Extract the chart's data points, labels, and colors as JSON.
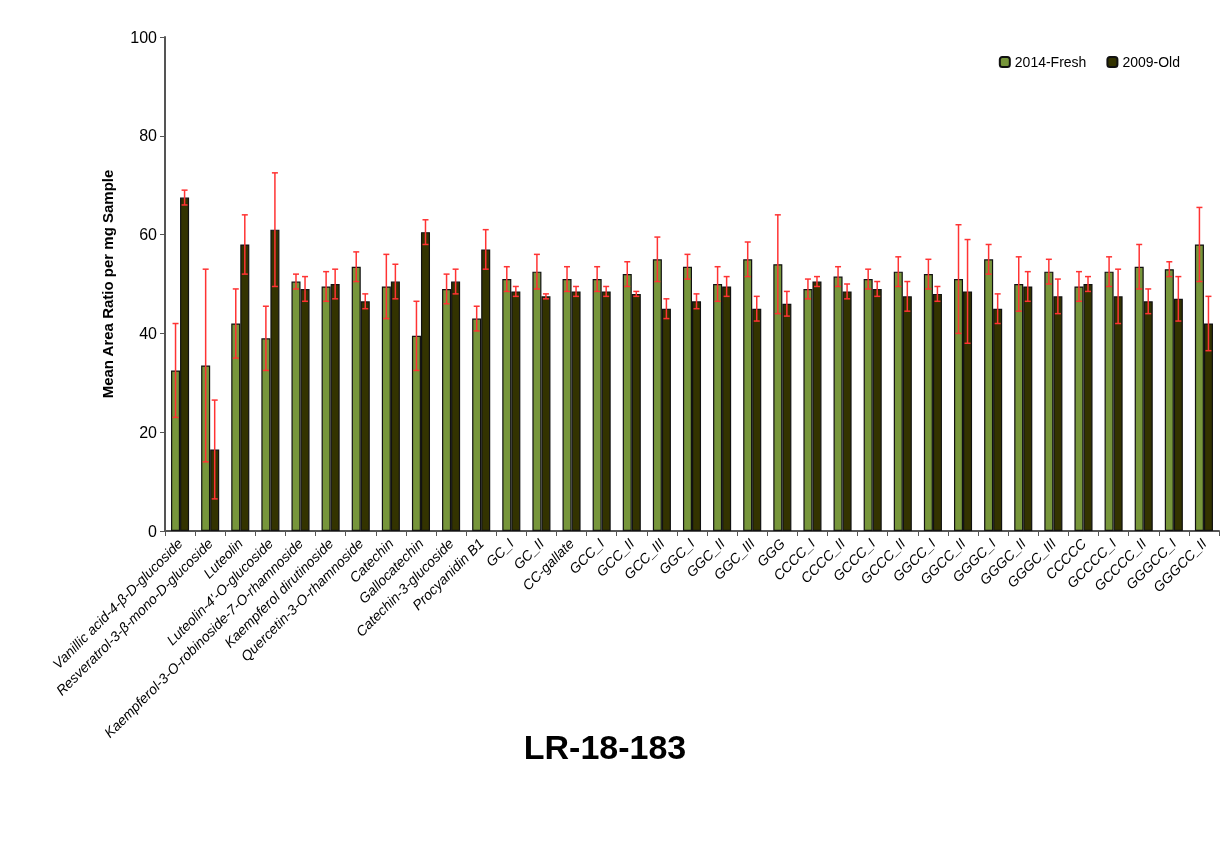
{
  "chart_data": {
    "type": "bar",
    "title": "LR-18-183",
    "ylabel": "Mean Area Ratio per mg Sample",
    "categories": [
      "Vanillic acid-4-β-D-glucoside",
      "Resveratrol-3-β-mono-D-glucoside",
      "Luteolin",
      "Luteolin-4'-O-glucoside",
      "Kaempferol-3-O-robinoside-7-O-rhamnoside",
      "Kaempferol dirutinoside",
      "Quercetin-3-O-rhamnoside",
      "Catechin",
      "Gallocatechin",
      "Catechin-3-glucoside",
      "Procyanidin B1",
      "GC_I",
      "GC_II",
      "CC-gallate",
      "GCC_I",
      "GCC_II",
      "GCC_III",
      "GGC_I",
      "GGC_II",
      "GGC_III",
      "GGG",
      "CCCC_I",
      "CCCC_II",
      "GCCC_I",
      "GCCC_II",
      "GGCC_I",
      "GGCC_II",
      "GGGC_I",
      "GGGC_II",
      "GGGC_III",
      "CCCCC",
      "GCCCC_I",
      "GCCCC_II",
      "GGGCC_I",
      "GGGCC_II"
    ],
    "series": [
      {
        "name": "2014-Fresh",
        "color": "#77963b",
        "values": [
          32.5,
          33.5,
          42,
          39,
          50.5,
          49.5,
          53.5,
          49.5,
          39.5,
          49,
          43,
          51,
          52.5,
          51,
          51,
          52,
          55,
          53.5,
          50,
          55,
          54,
          49,
          51.5,
          51,
          52.5,
          52,
          51,
          55,
          50,
          52.5,
          49.5,
          52.5,
          53.5,
          53,
          58
        ],
        "errors": [
          9.5,
          19.5,
          7,
          6.5,
          1.5,
          3,
          3,
          6.5,
          7,
          3,
          2.5,
          2.5,
          3.5,
          2.5,
          2.5,
          2.5,
          4.5,
          2.5,
          3.5,
          3.5,
          10,
          2,
          2,
          2,
          3,
          3,
          11,
          3,
          5.5,
          2.5,
          3,
          3,
          4.5,
          1.5,
          7.5
        ]
      },
      {
        "name": "2009-Old",
        "color": "#333300",
        "values": [
          67.5,
          16.5,
          58,
          61,
          49,
          50,
          46.5,
          50.5,
          60.5,
          50.5,
          57,
          48.5,
          47.5,
          48.5,
          48.5,
          48,
          45,
          46.5,
          49.5,
          45,
          46,
          50.5,
          48.5,
          49,
          47.5,
          48,
          48.5,
          45,
          49.5,
          47.5,
          50,
          47.5,
          46.5,
          47,
          42
        ],
        "errors": [
          1.5,
          10,
          6,
          11.5,
          2.5,
          3,
          1.5,
          3.5,
          2.5,
          2.5,
          4,
          1,
          0.5,
          1,
          1,
          0.5,
          2,
          1.5,
          2,
          2.5,
          2.5,
          1,
          1.5,
          1.5,
          3,
          1.5,
          10.5,
          3,
          3,
          3.5,
          1.5,
          5.5,
          2.5,
          4.5,
          5.5
        ]
      }
    ],
    "ylim": [
      0,
      100
    ],
    "yticks": [
      0,
      20,
      40,
      60,
      80,
      100
    ],
    "grid": false,
    "legend": "top right"
  }
}
